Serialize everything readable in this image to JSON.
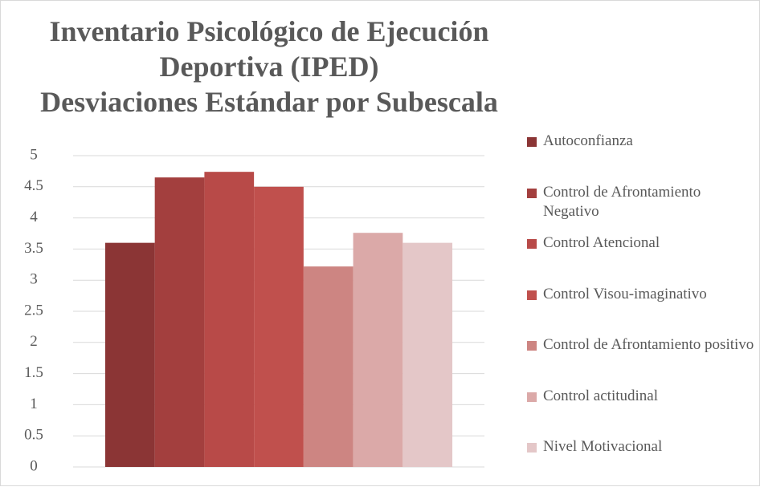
{
  "chart_data": {
    "type": "bar",
    "title": "Inventario Psicológico de Ejecución\nDeportiva (IPED)\nDesviaciones Estándar por Subescala",
    "categories": [
      null
    ],
    "series": [
      {
        "name": "Autoconfianza",
        "color": "#8b3535",
        "values": [
          3.6
        ]
      },
      {
        "name": "Control de Afrontamiento Negativo",
        "color": "#a33f3e",
        "values": [
          4.65
        ]
      },
      {
        "name": "Control Atencional",
        "color": "#b84a48",
        "values": [
          4.74
        ]
      },
      {
        "name": "Control Visou-imaginativo",
        "color": "#c0504d",
        "values": [
          4.5
        ]
      },
      {
        "name": "Control de Afrontamiento positivo",
        "color": "#cd8582",
        "values": [
          3.22
        ]
      },
      {
        "name": "Control actitudinal",
        "color": "#dba9a8",
        "values": [
          3.76
        ]
      },
      {
        "name": "Nivel Motivacional",
        "color": "#e4c7c8",
        "values": [
          3.6
        ]
      }
    ],
    "ylim": [
      0,
      5
    ],
    "yticks": [
      0,
      0.5,
      1,
      1.5,
      2,
      2.5,
      3,
      3.5,
      4,
      4.5,
      5
    ],
    "grid": true,
    "legend": "right"
  }
}
